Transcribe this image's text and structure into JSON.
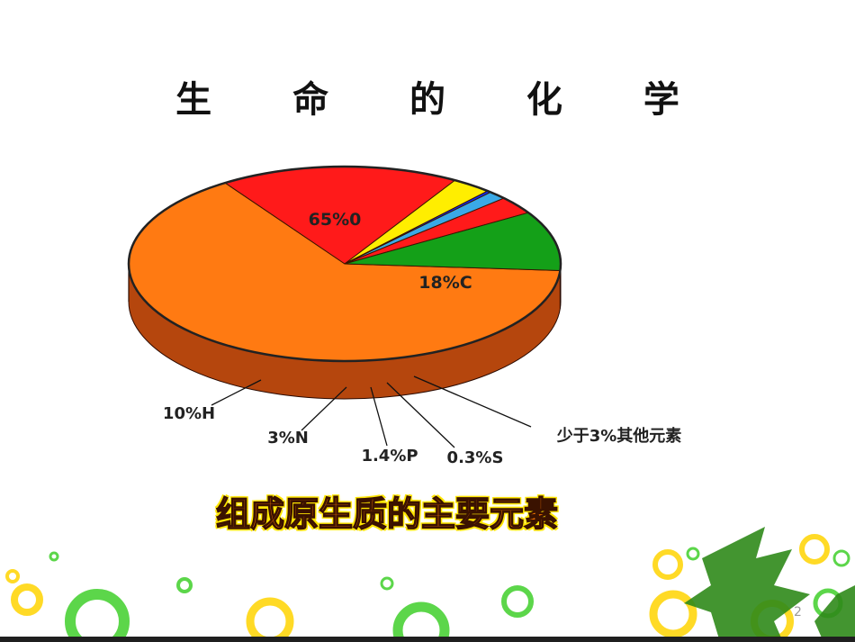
{
  "slide": {
    "title": "生 命 的 化 学",
    "caption": "组成原生质的主要元素",
    "page_number": "2"
  },
  "chart_data": {
    "type": "pie",
    "style": "3d-exploded",
    "title": "",
    "slices": [
      {
        "label": "65%0",
        "value": 65,
        "color": "#ff7a12",
        "side_color": "#b5460d"
      },
      {
        "label": "18%C",
        "value": 18,
        "color": "#ff1a1a",
        "side_color": "#8a0000"
      },
      {
        "label": "少于3%其他元素",
        "value": 3,
        "color": "#ffee00",
        "side_color": "#6b7d10"
      },
      {
        "label": "0.3%S",
        "value": 0.3,
        "color": "#0a2cff",
        "side_color": "#000c7a"
      },
      {
        "label": "1.4%P",
        "value": 1.4,
        "color": "#3aa9e6",
        "side_color": "#155c85"
      },
      {
        "label": "3%N",
        "value": 3,
        "color": "#ff1a1a",
        "side_color": "#8a0000"
      },
      {
        "label": "10%H",
        "value": 10,
        "color": "#14a018",
        "side_color": "#0e6a10"
      }
    ],
    "labels_inside": [
      "65%0",
      "18%C"
    ],
    "labels_outside": [
      "10%H",
      "3%N",
      "1.4%P",
      "0.3%S",
      "少于3%其他元素"
    ]
  },
  "colors": {
    "decor_green": "#3fcf2a",
    "decor_yellow": "#ffd400",
    "leaf_green": "#2f8a1a"
  }
}
